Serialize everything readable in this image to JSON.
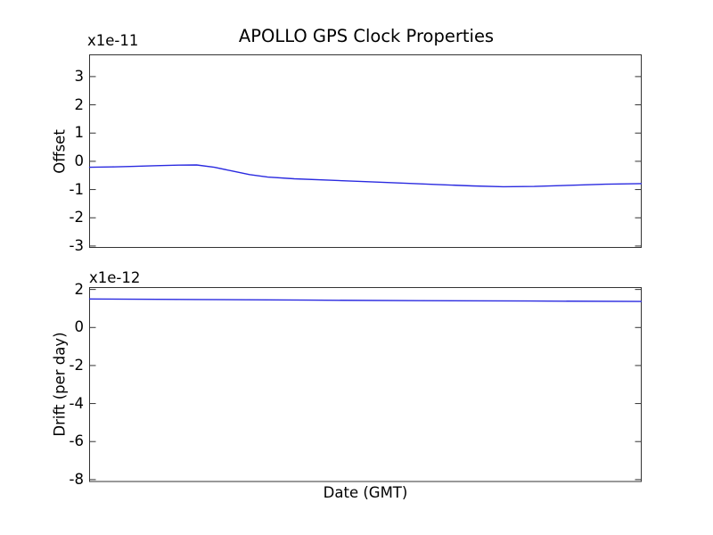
{
  "figure": {
    "background": "#ffffff",
    "axis_color": "#333333",
    "text_color": "#000000",
    "line_color": "#2a2ae0"
  },
  "chart_data": [
    {
      "type": "line",
      "title": "APOLLO GPS Clock Properties",
      "ylabel": "Offset",
      "xlabel": "",
      "y_scale_label": "x1e-11",
      "ylim": [
        -3.05,
        3.77
      ],
      "yticks": [
        3,
        2,
        1,
        0,
        -1,
        -2,
        -3
      ],
      "xticks": [],
      "xtick_labels": [],
      "grid": false,
      "legend": null,
      "series": [
        {
          "name": "offset",
          "color": "#2a2ae0",
          "x_frac": [
            0.0,
            0.04,
            0.081,
            0.121,
            0.161,
            0.194,
            0.226,
            0.258,
            0.29,
            0.323,
            0.371,
            0.435,
            0.5,
            0.565,
            0.629,
            0.694,
            0.75,
            0.806,
            0.871,
            0.935,
            1.0
          ],
          "y": [
            -0.21,
            -0.2,
            -0.18,
            -0.155,
            -0.135,
            -0.13,
            -0.21,
            -0.34,
            -0.47,
            -0.56,
            -0.62,
            -0.67,
            -0.72,
            -0.77,
            -0.82,
            -0.87,
            -0.9,
            -0.89,
            -0.85,
            -0.81,
            -0.79
          ]
        }
      ]
    },
    {
      "type": "line",
      "title": "",
      "ylabel": "Drift (per day)",
      "xlabel": "Date (GMT)",
      "y_scale_label": "x1e-12",
      "ylim": [
        -8.1,
        2.1
      ],
      "yticks": [
        2,
        0,
        -2,
        -4,
        -6,
        -8
      ],
      "xticks": [],
      "xtick_labels": [],
      "grid": false,
      "legend": null,
      "series": [
        {
          "name": "drift",
          "color": "#2a2ae0",
          "x_frac": [
            0.0,
            0.2,
            0.4,
            0.6,
            0.8,
            1.0
          ],
          "y": [
            1.5,
            1.47,
            1.44,
            1.41,
            1.39,
            1.37
          ]
        }
      ]
    }
  ]
}
